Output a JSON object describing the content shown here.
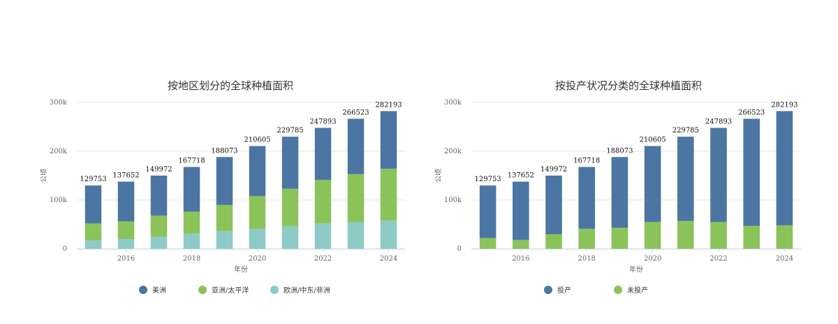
{
  "chart_data": [
    {
      "type": "bar",
      "stacked": true,
      "title": "按地区划分的全球种植面积",
      "xlabel": "年份",
      "ylabel": "公顷",
      "ylim": [
        0,
        300000
      ],
      "y_ticks": [
        0,
        100000,
        200000,
        300000
      ],
      "y_tick_labels": [
        "0",
        "100k",
        "200k",
        "300k"
      ],
      "x_tick_labels": [
        "2016",
        "2018",
        "2020",
        "2022",
        "2024"
      ],
      "categories": [
        "2015",
        "2016",
        "2017",
        "2018",
        "2019",
        "2020",
        "2021",
        "2022",
        "2023",
        "2024"
      ],
      "totals": [
        129753,
        137652,
        149972,
        167718,
        188073,
        210605,
        229785,
        247893,
        266523,
        282193
      ],
      "series": [
        {
          "name": "欧洲/中东/非洲",
          "color": "#8ecac6",
          "values": [
            17000,
            20000,
            25000,
            31000,
            36000,
            41000,
            46000,
            52000,
            55000,
            58000
          ]
        },
        {
          "name": "亚洲/太平洋",
          "color": "#8bc35a",
          "values": [
            35000,
            36000,
            43000,
            45000,
            54000,
            67000,
            77000,
            89000,
            98000,
            106000
          ]
        },
        {
          "name": "美洲",
          "color": "#4b76a3",
          "values": [
            77753,
            81652,
            81972,
            91718,
            98073,
            102605,
            106785,
            106893,
            113523,
            118193
          ]
        }
      ],
      "legend": [
        "美洲",
        "亚洲/太平洋",
        "欧洲/中东/非洲"
      ],
      "legend_position": "bottom"
    },
    {
      "type": "bar",
      "stacked": true,
      "title": "按投产状况分类的全球种植面积",
      "xlabel": "年份",
      "ylabel": "公顷",
      "ylim": [
        0,
        300000
      ],
      "y_ticks": [
        0,
        100000,
        200000,
        300000
      ],
      "y_tick_labels": [
        "0",
        "100k",
        "200k",
        "300k"
      ],
      "x_tick_labels": [
        "2016",
        "2018",
        "2020",
        "2022",
        "2024"
      ],
      "categories": [
        "2015",
        "2016",
        "2017",
        "2018",
        "2019",
        "2020",
        "2021",
        "2022",
        "2023",
        "2024"
      ],
      "totals": [
        129753,
        137652,
        149972,
        167718,
        188073,
        210605,
        229785,
        247893,
        266523,
        282193
      ],
      "series": [
        {
          "name": "未投产",
          "color": "#8bc35a",
          "values": [
            22000,
            18000,
            30000,
            41000,
            43000,
            55000,
            57000,
            55000,
            47000,
            48000
          ]
        },
        {
          "name": "投产",
          "color": "#4b76a3",
          "values": [
            107753,
            119652,
            119972,
            126718,
            145073,
            155605,
            172785,
            192893,
            219523,
            234193
          ]
        }
      ],
      "legend": [
        "投产",
        "未投产"
      ],
      "legend_position": "bottom"
    }
  ]
}
